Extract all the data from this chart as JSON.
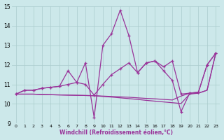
{
  "xlabel": "Windchill (Refroidissement éolien,°C)",
  "background_color": "#cce8ea",
  "line_color": "#993399",
  "grid_color": "#aacccc",
  "xlim": [
    -0.5,
    23.5
  ],
  "ylim": [
    9,
    15
  ],
  "xticks": [
    0,
    1,
    2,
    3,
    4,
    5,
    6,
    7,
    8,
    9,
    10,
    11,
    12,
    13,
    14,
    15,
    16,
    17,
    18,
    19,
    20,
    21,
    22,
    23
  ],
  "yticks": [
    9,
    10,
    11,
    12,
    13,
    14,
    15
  ],
  "hours": [
    0,
    1,
    2,
    3,
    4,
    5,
    6,
    7,
    8,
    9,
    10,
    11,
    12,
    13,
    14,
    15,
    16,
    17,
    18,
    19,
    20,
    21,
    22,
    23
  ],
  "line1": [
    10.5,
    10.7,
    10.7,
    10.8,
    10.85,
    10.9,
    11.7,
    11.1,
    12.1,
    9.3,
    13.0,
    13.6,
    14.8,
    13.5,
    11.6,
    12.1,
    12.2,
    11.7,
    11.2,
    9.6,
    10.55,
    10.6,
    12.0,
    12.6
  ],
  "line2": [
    10.5,
    10.7,
    10.7,
    10.8,
    10.85,
    10.9,
    11.0,
    11.1,
    11.0,
    10.45,
    11.0,
    11.5,
    11.8,
    12.1,
    11.6,
    12.1,
    12.2,
    11.9,
    12.2,
    10.5,
    10.55,
    10.6,
    12.0,
    12.6
  ],
  "line3": [
    10.5,
    10.5,
    10.5,
    10.48,
    10.47,
    10.46,
    10.45,
    10.44,
    10.43,
    10.42,
    10.4,
    10.38,
    10.36,
    10.34,
    10.31,
    10.28,
    10.26,
    10.23,
    10.2,
    10.4,
    10.55,
    10.55,
    10.7,
    12.6
  ],
  "line4": [
    10.5,
    10.5,
    10.5,
    10.48,
    10.47,
    10.46,
    10.45,
    10.44,
    10.43,
    10.42,
    10.38,
    10.35,
    10.31,
    10.27,
    10.23,
    10.18,
    10.14,
    10.1,
    10.06,
    10.02,
    10.5,
    10.55,
    10.7,
    12.6
  ]
}
